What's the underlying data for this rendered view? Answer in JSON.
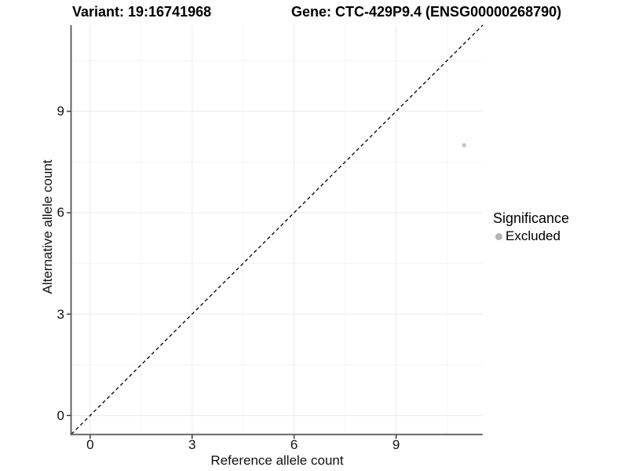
{
  "titles": {
    "left": "Variant: 19:16741968",
    "right": "Gene: CTC-429P9.4 (ENSG00000268790)"
  },
  "chart_data": {
    "type": "scatter",
    "title_left": "Variant: 19:16741968",
    "title_right": "Gene: CTC-429P9.4 (ENSG00000268790)",
    "xlabel": "Reference allele count",
    "ylabel": "Alternative allele count",
    "xlim": [
      -0.55,
      11.55
    ],
    "ylim": [
      -0.55,
      11.55
    ],
    "x_ticks": [
      0,
      3,
      6,
      9
    ],
    "y_ticks": [
      0,
      3,
      6,
      9
    ],
    "x_minor_ticks": [
      1.5,
      4.5,
      7.5,
      10.5
    ],
    "y_minor_ticks": [
      1.5,
      4.5,
      7.5,
      10.5
    ],
    "grid": "major and minor gridlines, very light gray, no top/right panel border",
    "identity_line": {
      "style": "dashed",
      "color": "#000000",
      "from": [
        -0.55,
        -0.55
      ],
      "to": [
        11.55,
        11.55
      ]
    },
    "series": [
      {
        "name": "Excluded",
        "color": "#c2c2c2",
        "points": [
          {
            "x": 11,
            "y": 8
          }
        ]
      }
    ],
    "legend": {
      "position": "right",
      "title": "Significance",
      "items": [
        {
          "label": "Excluded",
          "color": "#b3b3b3"
        }
      ]
    }
  },
  "colors": {
    "background": "#ffffff",
    "axis_line": "#555555",
    "tick_mark": "#333333",
    "grid_major": "#ececec",
    "grid_minor": "#f4f4f4",
    "dashed_line": "#000000",
    "point": "#c2c2c2",
    "text": "#000000"
  }
}
